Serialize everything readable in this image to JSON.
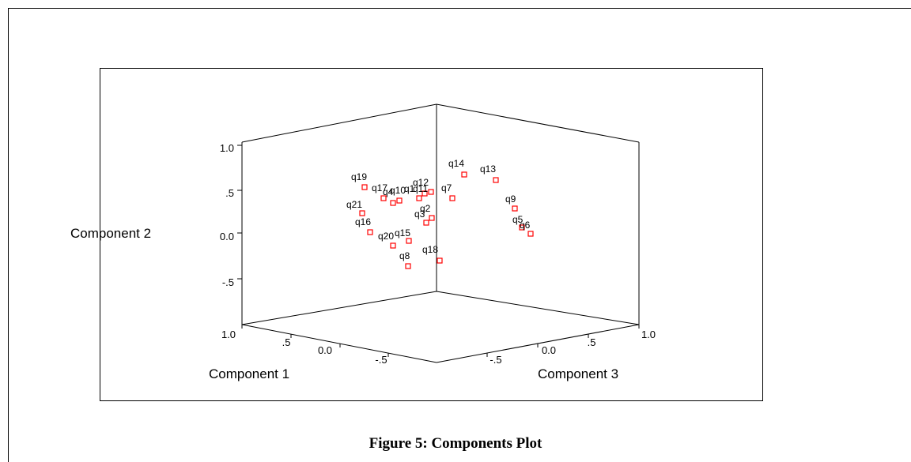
{
  "figure": {
    "caption": "Figure 5: Components Plot"
  },
  "chart_data": {
    "type": "scatter3d",
    "title": "",
    "axes": {
      "x": {
        "label": "Component 1",
        "ticks": [
          "1.0",
          ".5",
          "0.0",
          "-.5"
        ],
        "range": [
          -1,
          1
        ]
      },
      "y": {
        "label": "Component 2",
        "ticks": [
          "1.0",
          ".5",
          "0.0",
          "-.5"
        ],
        "range": [
          -1,
          1
        ]
      },
      "z": {
        "label": "Component 3",
        "ticks": [
          "-.5",
          "0.0",
          ".5",
          "1.0"
        ],
        "range": [
          -1,
          1
        ]
      }
    },
    "marker": {
      "shape": "square",
      "color": "#ff0000"
    },
    "points": [
      {
        "label": "q19"
      },
      {
        "label": "q17"
      },
      {
        "label": "q4"
      },
      {
        "label": "q10"
      },
      {
        "label": "q1"
      },
      {
        "label": "q11"
      },
      {
        "label": "q12"
      },
      {
        "label": "q7"
      },
      {
        "label": "q14"
      },
      {
        "label": "q13"
      },
      {
        "label": "q9"
      },
      {
        "label": "q5"
      },
      {
        "label": "q6"
      },
      {
        "label": "q21"
      },
      {
        "label": "q2"
      },
      {
        "label": "q3"
      },
      {
        "label": "q16"
      },
      {
        "label": "q20"
      },
      {
        "label": "q15"
      },
      {
        "label": "q8"
      },
      {
        "label": "q18"
      }
    ]
  }
}
